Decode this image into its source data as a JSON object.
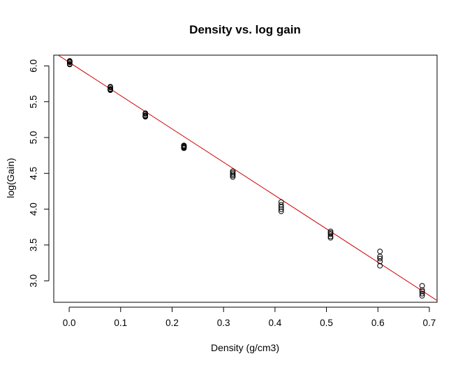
{
  "chart_data": {
    "type": "scatter",
    "title": "Density vs. log gain",
    "xlabel": "Density (g/cm3)",
    "ylabel": "log(Gain)",
    "xlim": [
      -0.03,
      0.715
    ],
    "ylim": [
      2.7,
      6.15
    ],
    "xticks": [
      0.0,
      0.1,
      0.2,
      0.3,
      0.4,
      0.5,
      0.6,
      0.7
    ],
    "xtick_labels": [
      "0.0",
      "0.1",
      "0.2",
      "0.3",
      "0.4",
      "0.5",
      "0.6",
      "0.7"
    ],
    "yticks": [
      3.0,
      3.5,
      4.0,
      4.5,
      5.0,
      5.5,
      6.0
    ],
    "ytick_labels": [
      "3.0",
      "3.5",
      "4.0",
      "4.5",
      "5.0",
      "5.5",
      "6.0"
    ],
    "grid": false,
    "fit_line": {
      "intercept": 6.05,
      "slope": -4.65,
      "color": "#d00000"
    },
    "points": [
      {
        "x": 0.001,
        "y": 6.07
      },
      {
        "x": 0.001,
        "y": 6.06
      },
      {
        "x": 0.001,
        "y": 6.05
      },
      {
        "x": 0.001,
        "y": 6.03
      },
      {
        "x": 0.001,
        "y": 6.02
      },
      {
        "x": 0.08,
        "y": 5.71
      },
      {
        "x": 0.08,
        "y": 5.7
      },
      {
        "x": 0.08,
        "y": 5.68
      },
      {
        "x": 0.08,
        "y": 5.67
      },
      {
        "x": 0.08,
        "y": 5.66
      },
      {
        "x": 0.148,
        "y": 5.34
      },
      {
        "x": 0.148,
        "y": 5.33
      },
      {
        "x": 0.148,
        "y": 5.31
      },
      {
        "x": 0.148,
        "y": 5.3
      },
      {
        "x": 0.148,
        "y": 5.29
      },
      {
        "x": 0.223,
        "y": 4.89
      },
      {
        "x": 0.223,
        "y": 4.88
      },
      {
        "x": 0.223,
        "y": 4.87
      },
      {
        "x": 0.223,
        "y": 4.86
      },
      {
        "x": 0.223,
        "y": 4.85
      },
      {
        "x": 0.318,
        "y": 4.53
      },
      {
        "x": 0.318,
        "y": 4.51
      },
      {
        "x": 0.318,
        "y": 4.49
      },
      {
        "x": 0.318,
        "y": 4.47
      },
      {
        "x": 0.318,
        "y": 4.45
      },
      {
        "x": 0.412,
        "y": 4.1
      },
      {
        "x": 0.412,
        "y": 4.06
      },
      {
        "x": 0.412,
        "y": 4.03
      },
      {
        "x": 0.412,
        "y": 4.0
      },
      {
        "x": 0.412,
        "y": 3.97
      },
      {
        "x": 0.508,
        "y": 3.69
      },
      {
        "x": 0.508,
        "y": 3.67
      },
      {
        "x": 0.508,
        "y": 3.65
      },
      {
        "x": 0.508,
        "y": 3.62
      },
      {
        "x": 0.508,
        "y": 3.6
      },
      {
        "x": 0.604,
        "y": 3.41
      },
      {
        "x": 0.604,
        "y": 3.34
      },
      {
        "x": 0.604,
        "y": 3.31
      },
      {
        "x": 0.604,
        "y": 3.27
      },
      {
        "x": 0.604,
        "y": 3.21
      },
      {
        "x": 0.686,
        "y": 2.93
      },
      {
        "x": 0.686,
        "y": 2.87
      },
      {
        "x": 0.686,
        "y": 2.85
      },
      {
        "x": 0.686,
        "y": 2.82
      },
      {
        "x": 0.686,
        "y": 2.79
      }
    ]
  }
}
